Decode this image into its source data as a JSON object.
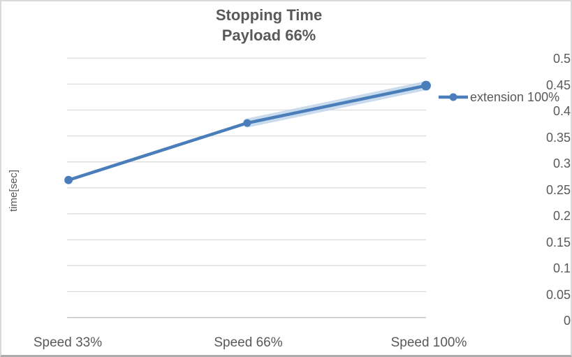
{
  "chart": {
    "title": "Stopping Time",
    "subtitle": "Payload 66%",
    "y_axis_title": "time[sec]",
    "legend_label": "extension 100%"
  },
  "chart_data": {
    "type": "line",
    "title": "Stopping Time",
    "subtitle": "Payload 66%",
    "categories": [
      "Speed 33%",
      "Speed 66%",
      "Speed 100%"
    ],
    "series": [
      {
        "name": "extension 100%",
        "values": [
          0.265,
          0.375,
          0.447
        ],
        "color": "#4A7EBB",
        "halo_color": "#BDD2EA",
        "marker": "circle"
      }
    ],
    "xlabel": "",
    "ylabel": "time[sec]",
    "ylim": [
      0,
      0.5
    ],
    "y_tick_step": 0.05,
    "y_tick_labels": [
      "0",
      "0.05",
      "0.1",
      "0.15",
      "0.2",
      "0.25",
      "0.3",
      "0.35",
      "0.4",
      "0.45",
      "0.5"
    ],
    "grid": true,
    "legend_position": "right"
  },
  "colors": {
    "series_blue": "#4A7EBB",
    "series_halo": "#BDD2EA",
    "gridline": "#D9D9D9",
    "axis_line": "#BFBFBF",
    "text": "#595959",
    "border": "#D9D9D9",
    "background": "#FFFFFF"
  }
}
